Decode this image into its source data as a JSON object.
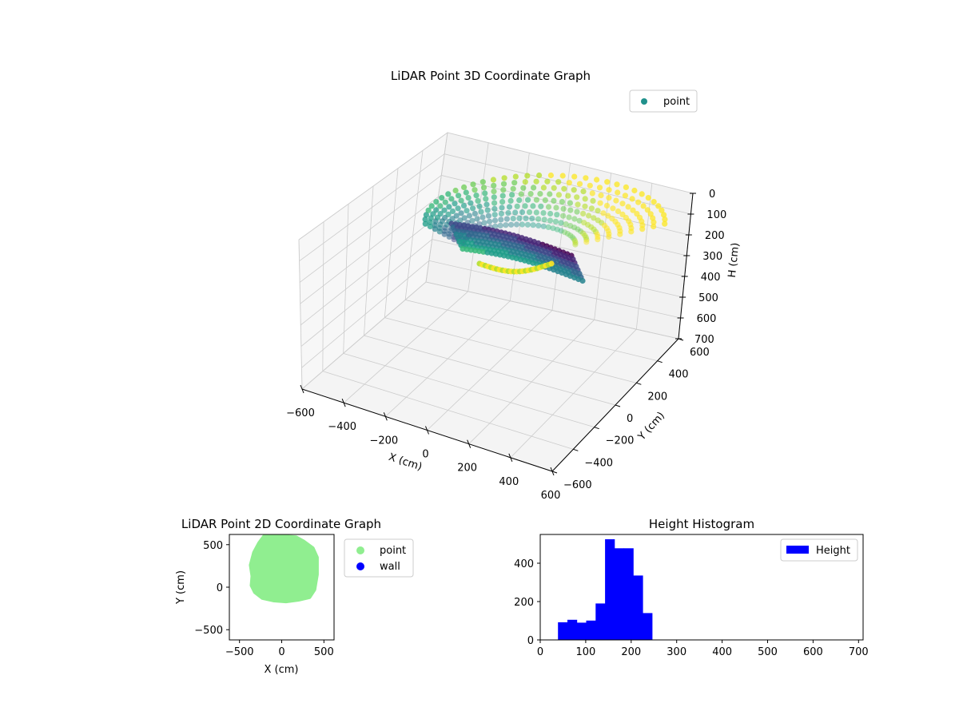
{
  "colors": {
    "hist_bar": "#0000ff",
    "point_2d": "#90ee90",
    "wall_2d": "#0000ff",
    "legend_3d_marker": "#21918c",
    "pane_fill": "#f2f2f2",
    "grid": "#cccccc",
    "colormap": "viridis"
  },
  "chart_data": [
    {
      "type": "scatter",
      "title": "LiDAR Point 3D Coordinate Graph",
      "xlabel": "X (cm)",
      "ylabel": "Y (cm)",
      "zlabel": "H (cm)",
      "x_ticks": [
        "−600",
        "−400",
        "−200",
        "0",
        "200",
        "400",
        "600"
      ],
      "y_ticks": [
        "−600",
        "−400",
        "−200",
        "0",
        "200",
        "400",
        "600"
      ],
      "z_ticks": [
        "0",
        "100",
        "200",
        "300",
        "400",
        "500",
        "600",
        "700"
      ],
      "xlim": [
        -600,
        600
      ],
      "ylim": [
        -600,
        600
      ],
      "zlim": [
        700,
        0
      ],
      "z_inverted": true,
      "colormap": "viridis",
      "legend": [
        "point"
      ],
      "legend_loc": "upper right",
      "grid": true,
      "series_extent": {
        "x_range": [
          -360,
          420
        ],
        "y_range": [
          -160,
          580
        ],
        "h_range": [
          40,
          250
        ]
      }
    },
    {
      "type": "scatter",
      "title": "LiDAR Point 2D Coordinate Graph",
      "xlabel": "X (cm)",
      "ylabel": "Y (cm)",
      "x_ticks": [
        "−500",
        "0",
        "500"
      ],
      "y_ticks": [
        "500",
        "0",
        "−500"
      ],
      "xlim": [
        -620,
        620
      ],
      "ylim": [
        -620,
        620
      ],
      "legend": [
        "point",
        "wall"
      ],
      "legend_loc": "outside upper right",
      "series": [
        {
          "name": "point",
          "color": "#90ee90",
          "outline": [
            [
              -210,
              600
            ],
            [
              -100,
              600
            ],
            [
              40,
              600
            ],
            [
              170,
              590
            ],
            [
              260,
              540
            ],
            [
              370,
              460
            ],
            [
              420,
              350
            ],
            [
              420,
              150
            ],
            [
              390,
              -30
            ],
            [
              330,
              -120
            ],
            [
              200,
              -150
            ],
            [
              50,
              -170
            ],
            [
              -90,
              -160
            ],
            [
              -230,
              -130
            ],
            [
              -320,
              -60
            ],
            [
              -360,
              20
            ],
            [
              -350,
              130
            ],
            [
              -370,
              260
            ],
            [
              -330,
              410
            ],
            [
              -270,
              520
            ]
          ]
        },
        {
          "name": "wall",
          "color": "#0000ff",
          "points": []
        }
      ]
    },
    {
      "type": "bar",
      "title": "Height Histogram",
      "xlabel": "",
      "ylabel": "",
      "x_ticks": [
        "0",
        "100",
        "200",
        "300",
        "400",
        "500",
        "600",
        "700"
      ],
      "y_ticks": [
        "0",
        "200",
        "400"
      ],
      "xlim": [
        0,
        710
      ],
      "ylim": [
        0,
        550
      ],
      "legend": [
        "Height"
      ],
      "legend_loc": "upper right",
      "bin_edges": [
        39,
        59.7,
        80.4,
        101.1,
        121.8,
        142.5,
        163.2,
        183.9,
        204.6,
        225.3,
        246
      ],
      "values": [
        92,
        105,
        90,
        101,
        190,
        525,
        478,
        478,
        336,
        140
      ]
    }
  ]
}
